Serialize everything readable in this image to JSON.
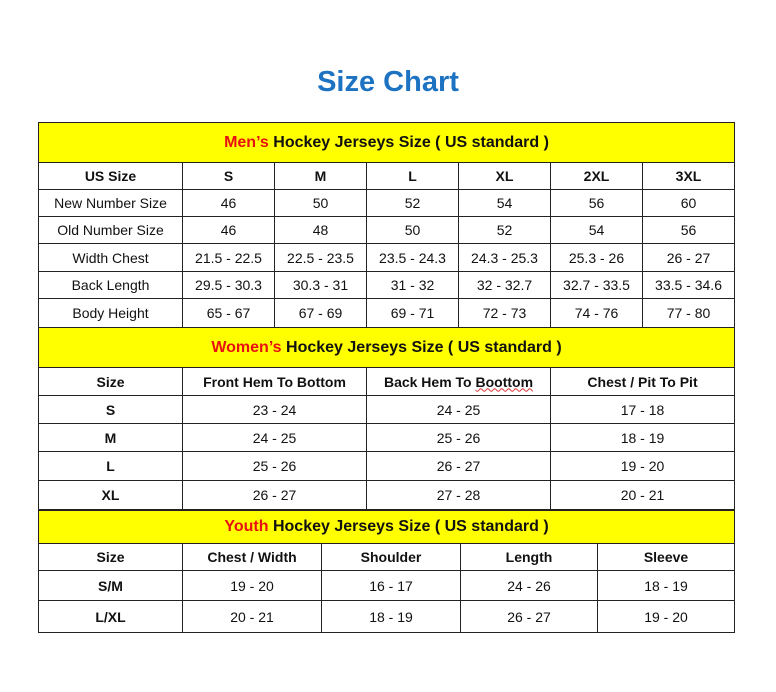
{
  "title": "Size Chart",
  "colors": {
    "title": "#1d72c2",
    "header_bg": "#ffff00",
    "highlight": "#e81010"
  },
  "men": {
    "heading_highlight": "Men’s",
    "heading_rest": " Hockey Jerseys Size ( US standard )",
    "columns": [
      "US Size",
      "S",
      "M",
      "L",
      "XL",
      "2XL",
      "3XL"
    ],
    "rows": [
      [
        "New Number Size",
        "46",
        "50",
        "52",
        "54",
        "56",
        "60"
      ],
      [
        "Old Number Size",
        "46",
        "48",
        "50",
        "52",
        "54",
        "56"
      ],
      [
        "Width Chest",
        "21.5 - 22.5",
        "22.5 - 23.5",
        "23.5 - 24.3",
        "24.3 - 25.3",
        "25.3 - 26",
        "26 - 27"
      ],
      [
        "Back Length",
        "29.5 - 30.3",
        "30.3 - 31",
        "31 - 32",
        "32 - 32.7",
        "32.7 - 33.5",
        "33.5 - 34.6"
      ],
      [
        "Body Height",
        "65 - 67",
        "67 - 69",
        "69 - 71",
        "72 - 73",
        "74 - 76",
        "77 - 80"
      ]
    ]
  },
  "women": {
    "heading_highlight": "Women’s",
    "heading_rest": " Hockey Jerseys Size ( US standard )",
    "columns": [
      "Size",
      "Front Hem To Bottom",
      "Back Hem To ",
      "Chest / Pit To Pit"
    ],
    "column_2_misspelled": "Boottom",
    "rows": [
      [
        "S",
        "23 - 24",
        "24 - 25",
        "17 - 18"
      ],
      [
        "M",
        "24 - 25",
        "25 - 26",
        "18 - 19"
      ],
      [
        "L",
        "25 - 26",
        "26 - 27",
        "19 - 20"
      ],
      [
        "XL",
        "26 - 27",
        "27 - 28",
        "20 - 21"
      ]
    ]
  },
  "youth": {
    "heading_highlight": "Youth",
    "heading_rest": " Hockey Jerseys Size ( US standard )",
    "columns": [
      "Size",
      "Chest / Width",
      "Shoulder",
      "Length",
      "Sleeve"
    ],
    "rows": [
      [
        "S/M",
        "19 - 20",
        "16 - 17",
        "24 - 26",
        "18 - 19"
      ],
      [
        "L/XL",
        "20 - 21",
        "18 - 19",
        "26 - 27",
        "19 - 20"
      ]
    ]
  }
}
